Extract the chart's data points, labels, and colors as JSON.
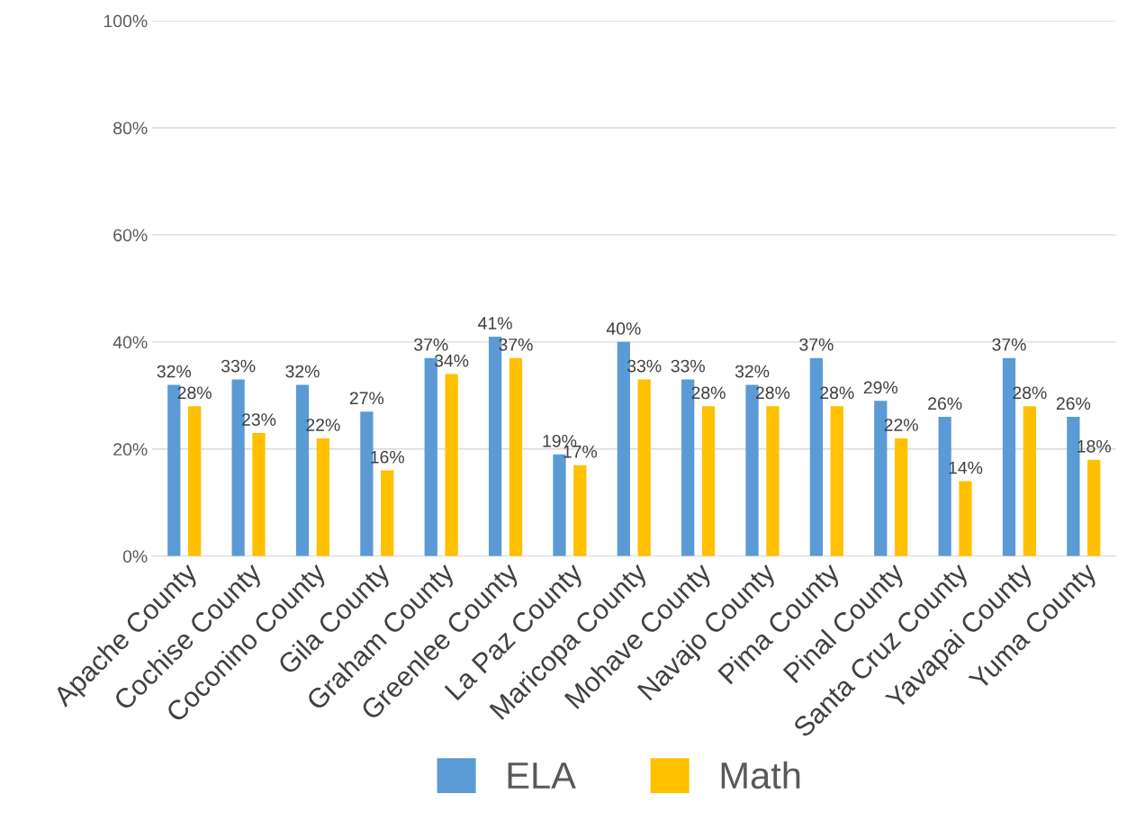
{
  "chart_data": {
    "type": "bar",
    "categories": [
      "Apache County",
      "Cochise County",
      "Coconino County",
      "Gila County",
      "Graham County",
      "Greenlee County",
      "La Paz County",
      "Maricopa County",
      "Mohave County",
      "Navajo County",
      "Pima County",
      "Pinal County",
      "Santa Cruz County",
      "Yavapai County",
      "Yuma County"
    ],
    "series": [
      {
        "name": "ELA",
        "color": "#5b9bd5",
        "values": [
          32,
          33,
          32,
          27,
          37,
          41,
          19,
          40,
          33,
          32,
          37,
          29,
          26,
          37,
          26
        ],
        "value_labels": [
          "32%",
          "33%",
          "32%",
          "27%",
          "37%",
          "41%",
          "19%",
          "40%",
          "33%",
          "32%",
          "37%",
          "29%",
          "26%",
          "37%",
          "26%"
        ]
      },
      {
        "name": "Math",
        "color": "#ffc000",
        "values": [
          28,
          23,
          22,
          16,
          34,
          37,
          17,
          33,
          28,
          28,
          28,
          22,
          14,
          28,
          18
        ],
        "value_labels": [
          "28%",
          "23%",
          "22%",
          "16%",
          "34%",
          "37%",
          "17%",
          "33%",
          "28%",
          "28%",
          "28%",
          "22%",
          "14%",
          "28%",
          "18%"
        ]
      }
    ],
    "ylim": [
      0,
      100
    ],
    "yticks": [
      {
        "value": 0,
        "label": "0%"
      },
      {
        "value": 20,
        "label": "20%"
      },
      {
        "value": 40,
        "label": "40%"
      },
      {
        "value": 60,
        "label": "60%"
      },
      {
        "value": 80,
        "label": "80%"
      },
      {
        "value": 100,
        "label": "100%"
      }
    ],
    "grid": "y",
    "legend": "bottom"
  }
}
